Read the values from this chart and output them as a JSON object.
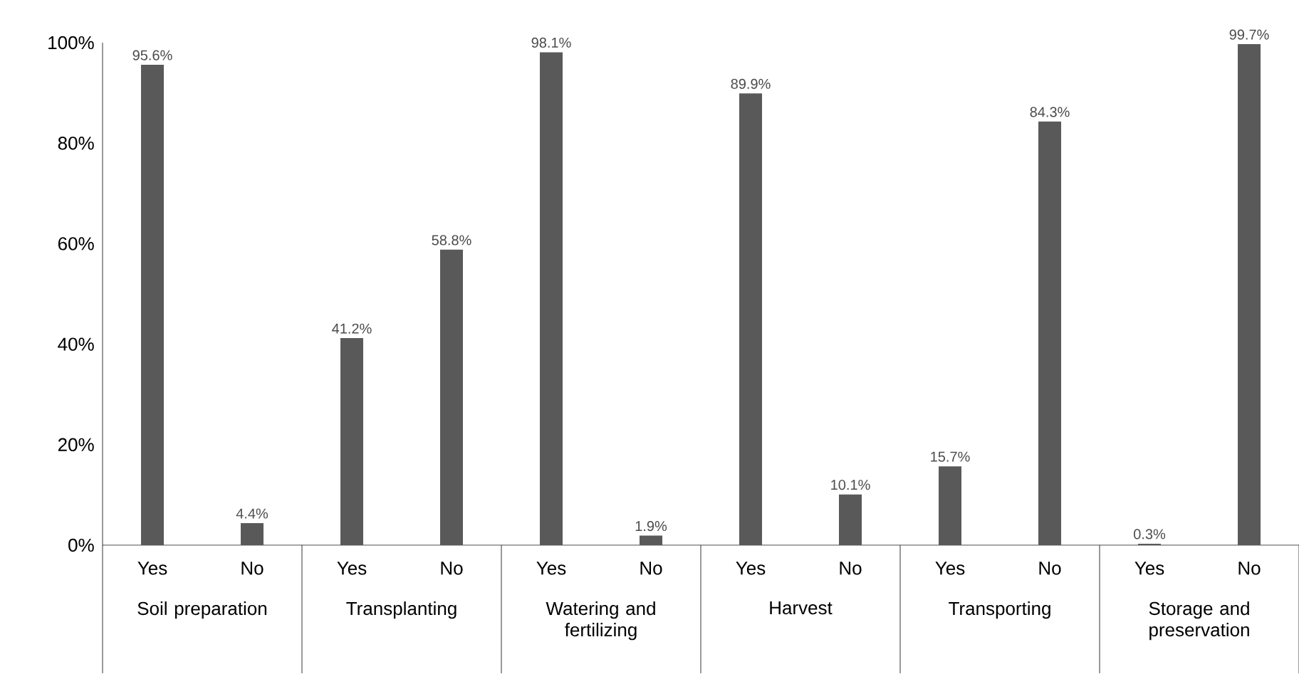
{
  "chart_data": {
    "type": "bar",
    "categories": [
      "Yes",
      "No",
      "Yes",
      "No",
      "Yes",
      "No",
      "Yes",
      "No",
      "Yes",
      "No",
      "Yes",
      "No"
    ],
    "values": [
      95.6,
      4.4,
      41.2,
      58.8,
      98.1,
      1.9,
      89.9,
      10.1,
      15.7,
      84.3,
      0.3,
      99.7
    ],
    "value_labels": [
      "95.6%",
      "4.4%",
      "41.2%",
      "58.8%",
      "98.1%",
      "1.9%",
      "89.9%",
      "10.1%",
      "15.7%",
      "84.3%",
      "0.3%",
      "99.7%"
    ],
    "color": "#595959",
    "ylim": [
      0,
      100
    ],
    "yticks": [
      {
        "value": 0,
        "label": "0%"
      },
      {
        "value": 20,
        "label": "20%"
      },
      {
        "value": 40,
        "label": "40%"
      },
      {
        "value": 60,
        "label": "60%"
      },
      {
        "value": 80,
        "label": "80%"
      },
      {
        "value": 100,
        "label": "100%"
      }
    ],
    "annotations": [
      "Soil preparation",
      "Transplanting",
      "Watering and fertilizing",
      "Harvest",
      "Transporting",
      "Storage and preservation"
    ]
  }
}
